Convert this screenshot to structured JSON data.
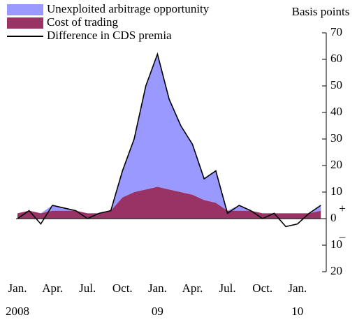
{
  "chart_data": {
    "type": "area-line",
    "y_label": "Basis points",
    "x": [
      "2008-01",
      "2008-02",
      "2008-03",
      "2008-04",
      "2008-05",
      "2008-06",
      "2008-07",
      "2008-08",
      "2008-09",
      "2008-10",
      "2008-11",
      "2008-12",
      "2009-01",
      "2009-02",
      "2009-03",
      "2009-04",
      "2009-05",
      "2009-06",
      "2009-07",
      "2009-08",
      "2009-09",
      "2009-10",
      "2009-11",
      "2009-12",
      "2010-01",
      "2010-02",
      "2010-03"
    ],
    "x_tick_labels": [
      "Jan.",
      "Apr.",
      "Jul.",
      "Oct.",
      "Jan.",
      "Apr.",
      "Jul.",
      "Oct.",
      "Jan."
    ],
    "x_year_labels": [
      "2008",
      "09",
      "10"
    ],
    "series": [
      {
        "name": "Unexploited arbitrage opportunity",
        "color": "#9999ff",
        "kind": "area",
        "values": [
          0,
          0,
          0,
          2,
          1,
          0,
          0,
          0,
          0,
          10,
          20,
          39,
          50,
          34,
          25,
          19,
          8,
          12,
          0,
          2,
          0,
          0,
          0,
          0,
          0,
          0,
          2
        ]
      },
      {
        "name": "Cost of trading",
        "color": "#993366",
        "kind": "area",
        "values": [
          2,
          3,
          2,
          3,
          3,
          3,
          2,
          2,
          3,
          8,
          10,
          11,
          12,
          11,
          10,
          9,
          7,
          6,
          3,
          3,
          3,
          2,
          2,
          2,
          2,
          2,
          3
        ]
      },
      {
        "name": "Difference in CDS premia",
        "color": "#000000",
        "kind": "line",
        "values": [
          0,
          3,
          -2,
          5,
          4,
          3,
          0,
          2,
          3,
          18,
          30,
          50,
          62,
          45,
          35,
          28,
          15,
          18,
          2,
          5,
          3,
          0,
          2,
          -3,
          -2,
          2,
          5
        ]
      }
    ],
    "ylim": [
      -20,
      70
    ],
    "yticks": [
      {
        "value": -20,
        "label": "20"
      },
      {
        "value": -10,
        "label": "10"
      },
      0,
      10,
      20,
      30,
      40,
      50,
      60,
      70
    ],
    "annotations": [
      "+",
      "–"
    ]
  }
}
